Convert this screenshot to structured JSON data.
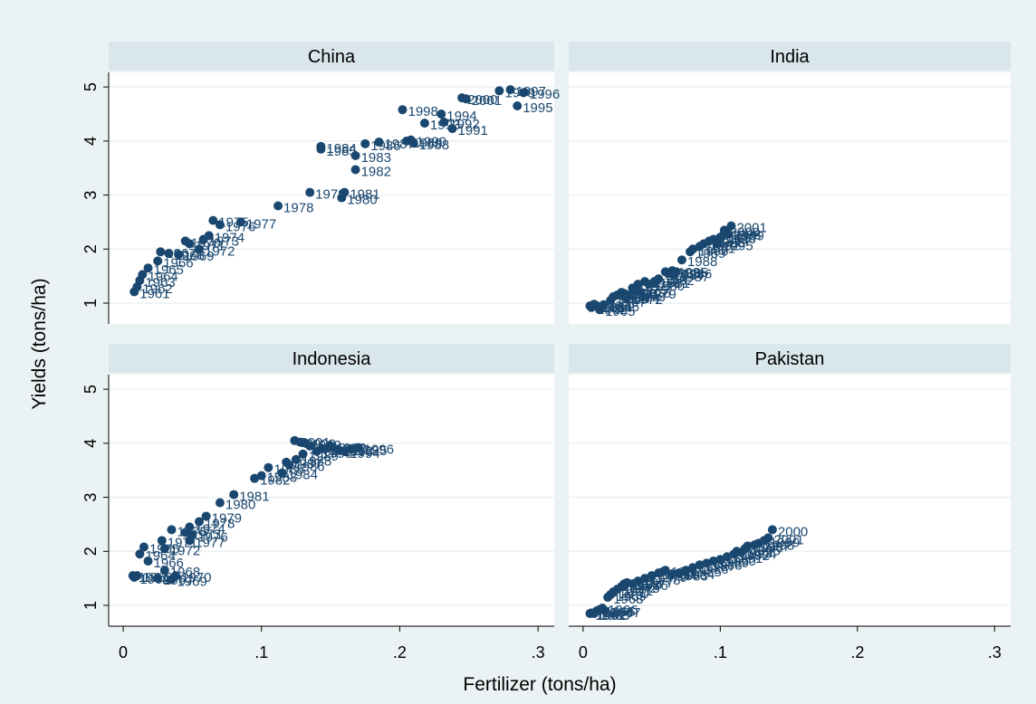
{
  "axis_titles": {
    "x": "Fertilizer (tons/ha)",
    "y": "Yields (tons/ha)"
  },
  "chart_data": [
    {
      "type": "scatter",
      "title": "China",
      "color": "#1a476f",
      "grid": true,
      "xlim": [
        -0.0105,
        0.3117
      ],
      "ylim": [
        0.615,
        5.27
      ],
      "yticks": [
        1,
        2,
        3,
        4,
        5
      ],
      "x": [
        0.008,
        0.01,
        0.012,
        0.014,
        0.018,
        0.025,
        0.027,
        0.033,
        0.04,
        0.045,
        0.048,
        0.055,
        0.058,
        0.062,
        0.065,
        0.07,
        0.085,
        0.112,
        0.135,
        0.158,
        0.16,
        0.168,
        0.168,
        0.143,
        0.143,
        0.175,
        0.185,
        0.21,
        0.205,
        0.208,
        0.238,
        0.232,
        0.218,
        0.23,
        0.285,
        0.29,
        0.28,
        0.202,
        0.272,
        0.245,
        0.248
      ],
      "values": [
        1.21,
        1.3,
        1.42,
        1.53,
        1.65,
        1.78,
        1.95,
        1.92,
        1.9,
        2.15,
        2.1,
        2.0,
        2.18,
        2.25,
        2.53,
        2.45,
        2.5,
        2.8,
        3.05,
        2.95,
        3.05,
        3.47,
        3.73,
        3.9,
        3.85,
        3.95,
        3.98,
        3.96,
        4.0,
        4.02,
        4.23,
        4.35,
        4.33,
        4.5,
        4.65,
        4.9,
        4.95,
        4.58,
        4.93,
        4.8,
        4.78
      ],
      "labels": [
        "1961",
        "1962",
        "1963",
        "1964",
        "1965",
        "1966",
        "1967",
        "1968",
        "1969",
        "1970",
        "1971",
        "1972",
        "1973",
        "1974",
        "1975",
        "1976",
        "1977",
        "1978",
        "1979",
        "1980",
        "1981",
        "1982",
        "1983",
        "1984",
        "1985",
        "1986",
        "1987",
        "1988",
        "1989",
        "1990",
        "1991",
        "1992",
        "1993",
        "1994",
        "1995",
        "1996",
        "1997",
        "1998",
        "1999",
        "2000",
        "2001"
      ]
    },
    {
      "type": "scatter",
      "title": "India",
      "color": "#1a476f",
      "grid": true,
      "xlim": [
        -0.0105,
        0.3117
      ],
      "ylim": [
        0.615,
        5.27
      ],
      "yticks": [
        1,
        2,
        3,
        4,
        5
      ],
      "x": [
        0.005,
        0.006,
        0.008,
        0.01,
        0.012,
        0.015,
        0.02,
        0.022,
        0.025,
        0.028,
        0.03,
        0.032,
        0.034,
        0.03,
        0.036,
        0.038,
        0.04,
        0.045,
        0.042,
        0.048,
        0.052,
        0.055,
        0.06,
        0.062,
        0.065,
        0.068,
        0.066,
        0.072,
        0.078,
        0.08,
        0.085,
        0.088,
        0.092,
        0.095,
        0.098,
        0.1,
        0.102,
        0.104,
        0.106,
        0.103,
        0.108
      ],
      "values": [
        0.95,
        0.92,
        0.98,
        0.95,
        0.88,
        0.97,
        1.05,
        1.12,
        1.15,
        1.2,
        1.18,
        1.1,
        1.15,
        1.12,
        1.28,
        1.22,
        1.35,
        1.4,
        1.2,
        1.35,
        1.4,
        1.45,
        1.58,
        1.55,
        1.6,
        1.58,
        1.52,
        1.8,
        1.95,
        2.0,
        2.05,
        2.1,
        2.15,
        2.18,
        2.1,
        2.22,
        2.25,
        2.3,
        2.28,
        2.35,
        2.43
      ],
      "labels": [
        "1961",
        "1962",
        "1963",
        "1964",
        "1965",
        "1966",
        "1967",
        "1968",
        "1969",
        "1970",
        "1971",
        "1972",
        "1973",
        "1974",
        "1975",
        "1976",
        "1977",
        "1978",
        "1979",
        "1980",
        "1981",
        "1982",
        "1983",
        "1984",
        "1985",
        "1986",
        "1987",
        "1988",
        "1989",
        "1990",
        "1991",
        "1992",
        "1993",
        "1994",
        "1995",
        "1996",
        "1997",
        "1998",
        "1999",
        "2000",
        "2001"
      ]
    },
    {
      "type": "scatter",
      "title": "Indonesia",
      "color": "#1a476f",
      "grid": true,
      "xlim": [
        -0.0105,
        0.3117
      ],
      "ylim": [
        0.615,
        5.27
      ],
      "yticks": [
        1,
        2,
        3,
        4,
        5
      ],
      "xticks": [
        0,
        {
          "value": 0.1,
          "label": ".1"
        },
        {
          "value": 0.2,
          "label": ".2"
        },
        {
          "value": 0.3,
          "label": ".3"
        }
      ],
      "x": [
        0.007,
        0.008,
        0.01,
        0.012,
        0.015,
        0.018,
        0.025,
        0.03,
        0.035,
        0.038,
        0.028,
        0.03,
        0.045,
        0.048,
        0.035,
        0.05,
        0.048,
        0.055,
        0.06,
        0.07,
        0.08,
        0.095,
        0.1,
        0.115,
        0.105,
        0.12,
        0.118,
        0.125,
        0.13,
        0.14,
        0.145,
        0.15,
        0.155,
        0.16,
        0.165,
        0.17,
        0.15,
        0.135,
        0.132,
        0.128,
        0.124
      ],
      "values": [
        1.55,
        1.52,
        1.55,
        1.95,
        2.08,
        1.82,
        1.5,
        1.65,
        1.48,
        1.55,
        2.2,
        2.05,
        2.35,
        2.45,
        2.4,
        2.3,
        2.2,
        2.55,
        2.65,
        2.9,
        3.05,
        3.35,
        3.4,
        3.45,
        3.55,
        3.6,
        3.65,
        3.7,
        3.8,
        3.85,
        3.9,
        3.95,
        3.88,
        3.85,
        3.9,
        3.92,
        3.92,
        3.95,
        4.0,
        4.02,
        4.05
      ],
      "labels": [
        "1961",
        "1962",
        "1963",
        "1964",
        "1965",
        "1966",
        "1967",
        "1968",
        "1969",
        "1970",
        "1971",
        "1972",
        "1973",
        "1974",
        "1975",
        "1976",
        "1977",
        "1978",
        "1979",
        "1980",
        "1981",
        "1982",
        "1983",
        "1984",
        "1985",
        "1986",
        "1987",
        "1988",
        "1989",
        "1990",
        "1991",
        "1992",
        "1993",
        "1994",
        "1995",
        "1996",
        "1997",
        "1998",
        "1999",
        "2000",
        "2001"
      ]
    },
    {
      "type": "scatter",
      "title": "Pakistan",
      "color": "#1a476f",
      "grid": true,
      "xlim": [
        -0.0105,
        0.3117
      ],
      "ylim": [
        0.615,
        5.27
      ],
      "yticks": [
        1,
        2,
        3,
        4,
        5
      ],
      "xticks": [
        0,
        {
          "value": 0.1,
          "label": ".1"
        },
        {
          "value": 0.2,
          "label": ".2"
        },
        {
          "value": 0.3,
          "label": ".3"
        }
      ],
      "x": [
        0.005,
        0.006,
        0.008,
        0.01,
        0.012,
        0.014,
        0.016,
        0.018,
        0.02,
        0.022,
        0.025,
        0.028,
        0.03,
        0.032,
        0.03,
        0.036,
        0.04,
        0.045,
        0.05,
        0.055,
        0.058,
        0.06,
        0.065,
        0.07,
        0.075,
        0.08,
        0.085,
        0.09,
        0.095,
        0.1,
        0.105,
        0.11,
        0.112,
        0.115,
        0.118,
        0.12,
        0.125,
        0.128,
        0.132,
        0.138,
        0.135
      ],
      "values": [
        0.85,
        0.86,
        0.85,
        0.9,
        0.92,
        0.95,
        0.9,
        1.15,
        1.2,
        1.25,
        1.3,
        1.35,
        1.4,
        1.42,
        1.35,
        1.4,
        1.45,
        1.5,
        1.55,
        1.6,
        1.62,
        1.65,
        1.58,
        1.6,
        1.65,
        1.7,
        1.75,
        1.78,
        1.82,
        1.85,
        1.9,
        1.95,
        2.0,
        1.98,
        2.05,
        2.1,
        2.12,
        2.15,
        2.2,
        2.4,
        2.25
      ],
      "labels": [
        "1961",
        "1962",
        "1963",
        "1964",
        "1965",
        "1966",
        "1967",
        "1968",
        "1969",
        "1970",
        "1971",
        "1972",
        "1973",
        "1974",
        "1975",
        "1976",
        "1977",
        "1978",
        "1979",
        "1980",
        "1981",
        "1982",
        "1983",
        "1984",
        "1985",
        "1986",
        "1987",
        "1988",
        "1989",
        "1990",
        "1991",
        "1992",
        "1993",
        "1994",
        "1995",
        "1996",
        "1997",
        "1998",
        "1999",
        "2000",
        "2001"
      ]
    }
  ]
}
